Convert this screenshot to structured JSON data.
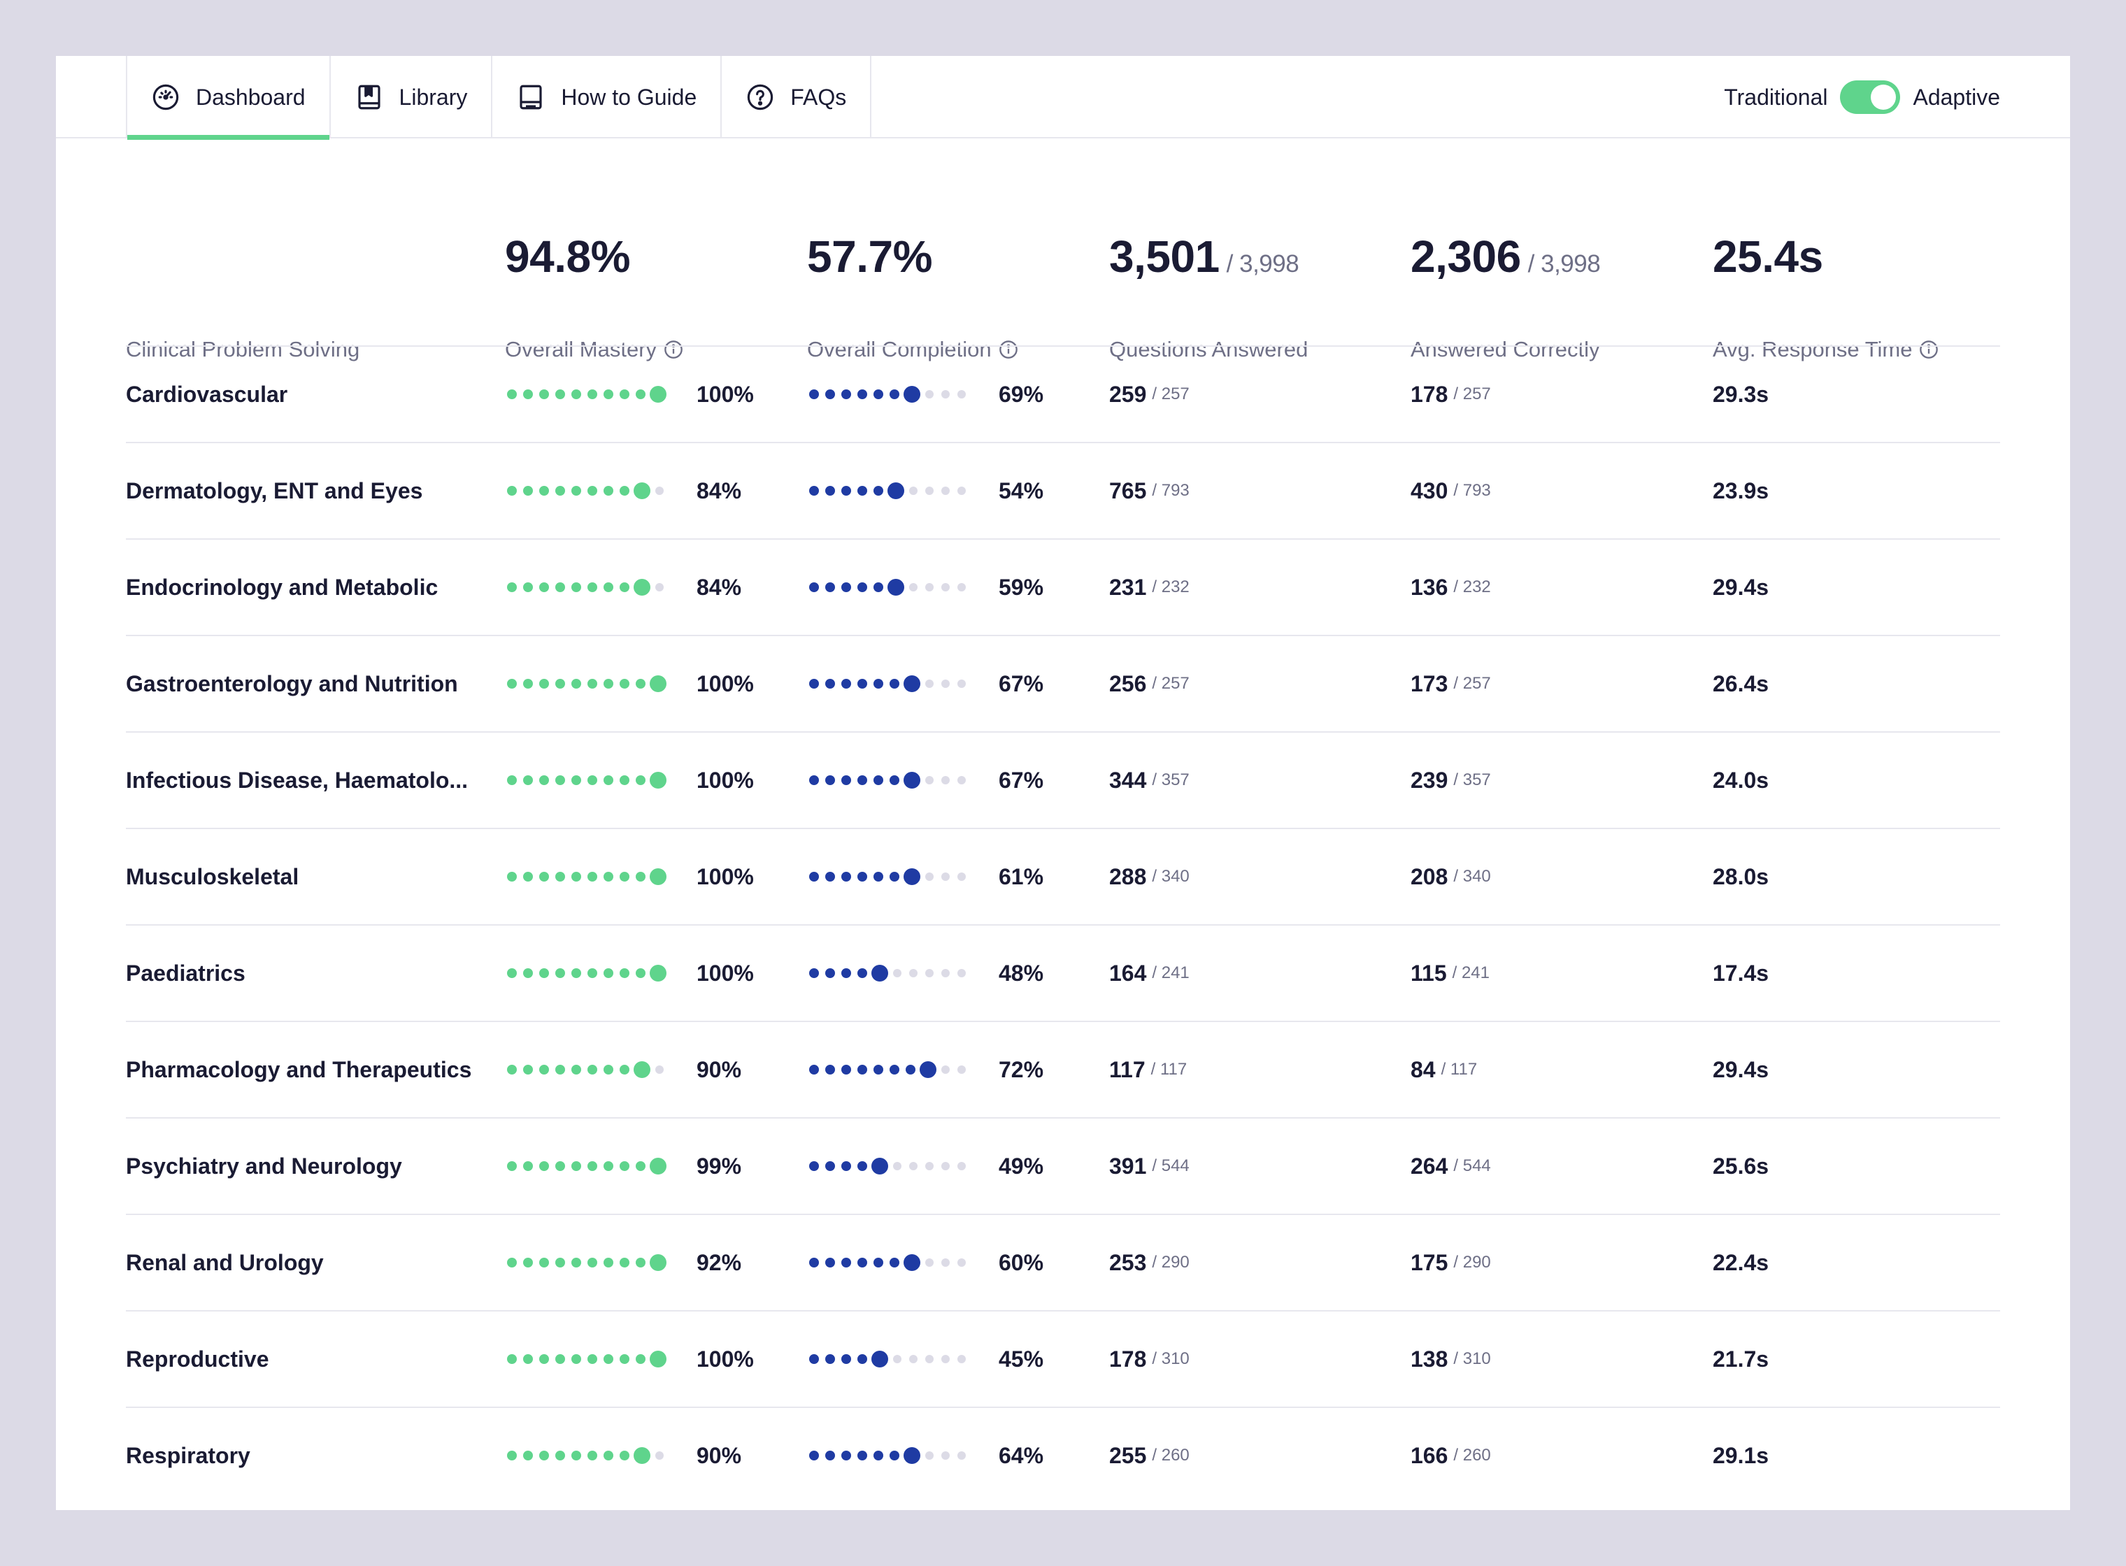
{
  "colors": {
    "background": "#dcdae6",
    "accent_green": "#5fd48c",
    "accent_blue": "#1f3ba3",
    "dot_inactive": "#dcdbe6",
    "text_dark": "#1a1b33",
    "text_muted": "#6e6f86"
  },
  "tabs": [
    {
      "label": "Dashboard",
      "icon": "gauge-icon",
      "active": true
    },
    {
      "label": "Library",
      "icon": "book-icon",
      "active": false
    },
    {
      "label": "How to Guide",
      "icon": "guide-icon",
      "active": false
    },
    {
      "label": "FAQs",
      "icon": "question-circle-icon",
      "active": false
    }
  ],
  "mode_toggle": {
    "left_label": "Traditional",
    "right_label": "Adaptive",
    "selected": "Adaptive"
  },
  "summary": {
    "section_label": "Clinical Problem Solving",
    "mastery": {
      "value": "94.8%",
      "label": "Overall Mastery"
    },
    "completion": {
      "value": "57.7%",
      "label": "Overall Completion"
    },
    "answered": {
      "value": "3,501",
      "denominator": "/ 3,998",
      "label": "Questions Answered"
    },
    "correct": {
      "value": "2,306",
      "denominator": "/ 3,998",
      "label": "Answered Correctly"
    },
    "response_time": {
      "value": "25.4s",
      "label": "Avg. Response Time"
    }
  },
  "rows": [
    {
      "name": "Cardiovascular",
      "mastery": "100%",
      "mastery_level": 10,
      "completion": "69%",
      "completion_level": 7,
      "answered": "259",
      "answered_of": "/ 257",
      "correct": "178",
      "correct_of": "/ 257",
      "time": "29.3s"
    },
    {
      "name": "Dermatology, ENT and Eyes",
      "mastery": "84%",
      "mastery_level": 9,
      "completion": "54%",
      "completion_level": 6,
      "answered": "765",
      "answered_of": "/ 793",
      "correct": "430",
      "correct_of": "/ 793",
      "time": "23.9s"
    },
    {
      "name": "Endocrinology and Metabolic",
      "mastery": "84%",
      "mastery_level": 9,
      "completion": "59%",
      "completion_level": 6,
      "answered": "231",
      "answered_of": "/ 232",
      "correct": "136",
      "correct_of": "/ 232",
      "time": "29.4s"
    },
    {
      "name": "Gastroenterology and Nutrition",
      "mastery": "100%",
      "mastery_level": 10,
      "completion": "67%",
      "completion_level": 7,
      "answered": "256",
      "answered_of": "/ 257",
      "correct": "173",
      "correct_of": "/ 257",
      "time": "26.4s"
    },
    {
      "name": "Infectious Disease, Haematolo...",
      "mastery": "100%",
      "mastery_level": 10,
      "completion": "67%",
      "completion_level": 7,
      "answered": "344",
      "answered_of": "/ 357",
      "correct": "239",
      "correct_of": "/ 357",
      "time": "24.0s"
    },
    {
      "name": "Musculoskeletal",
      "mastery": "100%",
      "mastery_level": 10,
      "completion": "61%",
      "completion_level": 7,
      "answered": "288",
      "answered_of": "/ 340",
      "correct": "208",
      "correct_of": "/ 340",
      "time": "28.0s"
    },
    {
      "name": "Paediatrics",
      "mastery": "100%",
      "mastery_level": 10,
      "completion": "48%",
      "completion_level": 5,
      "answered": "164",
      "answered_of": "/ 241",
      "correct": "115",
      "correct_of": "/ 241",
      "time": "17.4s"
    },
    {
      "name": "Pharmacology and Therapeutics",
      "mastery": "90%",
      "mastery_level": 9,
      "completion": "72%",
      "completion_level": 8,
      "answered": "117",
      "answered_of": "/ 117",
      "correct": "84",
      "correct_of": "/ 117",
      "time": "29.4s"
    },
    {
      "name": "Psychiatry and Neurology",
      "mastery": "99%",
      "mastery_level": 10,
      "completion": "49%",
      "completion_level": 5,
      "answered": "391",
      "answered_of": "/ 544",
      "correct": "264",
      "correct_of": "/ 544",
      "time": "25.6s"
    },
    {
      "name": "Renal and Urology",
      "mastery": "92%",
      "mastery_level": 10,
      "completion": "60%",
      "completion_level": 7,
      "answered": "253",
      "answered_of": "/ 290",
      "correct": "175",
      "correct_of": "/ 290",
      "time": "22.4s"
    },
    {
      "name": "Reproductive",
      "mastery": "100%",
      "mastery_level": 10,
      "completion": "45%",
      "completion_level": 5,
      "answered": "178",
      "answered_of": "/ 310",
      "correct": "138",
      "correct_of": "/ 310",
      "time": "21.7s"
    },
    {
      "name": "Respiratory",
      "mastery": "90%",
      "mastery_level": 9,
      "completion": "64%",
      "completion_level": 7,
      "answered": "255",
      "answered_of": "/ 260",
      "correct": "166",
      "correct_of": "/ 260",
      "time": "29.1s"
    }
  ]
}
